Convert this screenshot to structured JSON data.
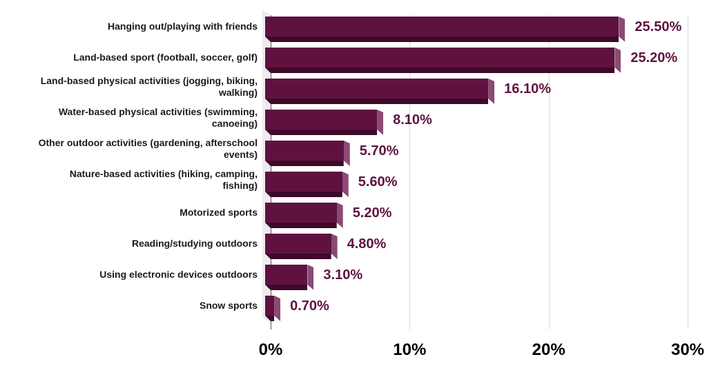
{
  "chart_data": {
    "type": "bar",
    "orientation": "horizontal",
    "style": "3d",
    "title": "",
    "xlabel": "",
    "ylabel": "",
    "categories": [
      "Hanging out/playing with friends",
      "Land-based sport (football, soccer, golf)",
      "Land-based physical activities (jogging, biking, walking)",
      "Water-based physical activities (swimming, canoeing)",
      "Other outdoor activities (gardening, afterschool events)",
      "Nature-based activities (hiking, camping, fishing)",
      "Motorized sports",
      "Reading/studying outdoors",
      "Using electronic devices outdoors",
      "Snow sports"
    ],
    "values": [
      25.5,
      25.2,
      16.1,
      8.1,
      5.7,
      5.6,
      5.2,
      4.8,
      3.1,
      0.7
    ],
    "data_labels": [
      "25.50%",
      "25.20%",
      "16.10%",
      "8.10%",
      "5.70%",
      "5.60%",
      "5.20%",
      "4.80%",
      "3.10%",
      "0.70%"
    ],
    "xlim": [
      0,
      30
    ],
    "x_ticks": [
      "0%",
      "10%",
      "20%",
      "30%"
    ],
    "grid": true,
    "legend": "none",
    "bar_color": "#5f1240",
    "label_color": "#5e1340"
  },
  "labels": {
    "cat": [
      [
        "Hanging out/playing with friends"
      ],
      [
        "Land-based sport (football, soccer, golf)"
      ],
      [
        "Land-based physical activities (jogging, biking,",
        "walking)"
      ],
      [
        "Water-based physical activities (swimming,",
        "canoeing)"
      ],
      [
        "Other outdoor activities (gardening, afterschool",
        "events)"
      ],
      [
        "Nature-based activities (hiking, camping,",
        "fishing)"
      ],
      [
        "Motorized sports"
      ],
      [
        "Reading/studying outdoors"
      ],
      [
        "Using electronic devices outdoors"
      ],
      [
        "Snow sports"
      ]
    ]
  }
}
